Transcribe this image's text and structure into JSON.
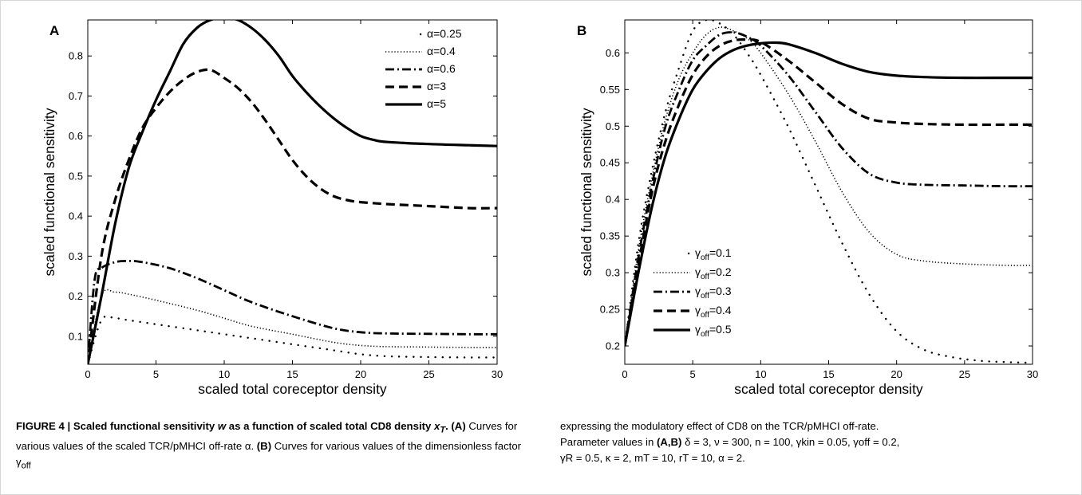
{
  "chart_data": [
    {
      "panel_label": "A",
      "type": "line",
      "xlabel": "scaled total coreceptor density",
      "ylabel": "scaled functional sensitivity",
      "xlim": [
        0,
        30
      ],
      "ylim": [
        0.03,
        0.89
      ],
      "xticks": [
        0,
        5,
        10,
        15,
        20,
        25,
        30
      ],
      "yticks": [
        0.1,
        0.2,
        0.3,
        0.4,
        0.5,
        0.6,
        0.7,
        0.8
      ],
      "legend_position": "top-right",
      "series": [
        {
          "name": "α=0.25",
          "style": "dotted-sparse",
          "x": [
            0,
            1,
            2,
            3,
            5,
            8,
            10,
            12,
            15,
            18,
            20,
            22,
            25,
            28,
            30
          ],
          "y": [
            0.03,
            0.14,
            0.145,
            0.14,
            0.13,
            0.115,
            0.105,
            0.095,
            0.08,
            0.065,
            0.055,
            0.05,
            0.048,
            0.047,
            0.047
          ]
        },
        {
          "name": "α=0.4",
          "style": "dotted",
          "x": [
            0,
            1,
            2,
            3,
            5,
            8,
            10,
            12,
            15,
            18,
            20,
            22,
            25,
            28,
            30
          ],
          "y": [
            0.03,
            0.2,
            0.21,
            0.205,
            0.19,
            0.165,
            0.145,
            0.125,
            0.105,
            0.085,
            0.077,
            0.074,
            0.073,
            0.072,
            0.072
          ]
        },
        {
          "name": "α=0.6",
          "style": "dashdot",
          "x": [
            0,
            0.5,
            1,
            2,
            3,
            4,
            6,
            8,
            10,
            12,
            15,
            18,
            20,
            22,
            25,
            28,
            30
          ],
          "y": [
            0.03,
            0.24,
            0.27,
            0.285,
            0.288,
            0.285,
            0.27,
            0.245,
            0.215,
            0.185,
            0.15,
            0.12,
            0.11,
            0.107,
            0.106,
            0.105,
            0.105
          ]
        },
        {
          "name": "α=3",
          "style": "dashed",
          "x": [
            0,
            1,
            2,
            3,
            4,
            5,
            6,
            7,
            8,
            9,
            10,
            11,
            12,
            13,
            14,
            15,
            16,
            17,
            18,
            19,
            20,
            22,
            25,
            28,
            30
          ],
          "y": [
            0.03,
            0.3,
            0.44,
            0.54,
            0.62,
            0.67,
            0.71,
            0.74,
            0.76,
            0.765,
            0.745,
            0.72,
            0.685,
            0.64,
            0.59,
            0.54,
            0.5,
            0.47,
            0.45,
            0.44,
            0.435,
            0.43,
            0.425,
            0.42,
            0.42
          ]
        },
        {
          "name": "α=5",
          "style": "solid",
          "x": [
            0,
            1,
            2,
            3,
            4,
            5,
            6,
            7,
            8,
            9,
            10,
            11,
            12,
            13,
            14,
            15,
            16,
            17,
            18,
            19,
            20,
            21,
            22,
            25,
            28,
            30
          ],
          "y": [
            0.03,
            0.2,
            0.38,
            0.52,
            0.61,
            0.69,
            0.76,
            0.83,
            0.87,
            0.89,
            0.895,
            0.89,
            0.87,
            0.84,
            0.8,
            0.75,
            0.71,
            0.675,
            0.645,
            0.62,
            0.6,
            0.59,
            0.585,
            0.58,
            0.577,
            0.575
          ]
        }
      ]
    },
    {
      "panel_label": "B",
      "type": "line",
      "xlabel": "scaled total coreceptor density",
      "ylabel": "scaled functional sensitivity",
      "xlim": [
        0,
        30
      ],
      "ylim": [
        0.175,
        0.645
      ],
      "xticks": [
        0,
        5,
        10,
        15,
        20,
        25,
        30
      ],
      "yticks": [
        0.2,
        0.25,
        0.3,
        0.35,
        0.4,
        0.45,
        0.5,
        0.55,
        0.6
      ],
      "legend_position": "bottom-left",
      "series": [
        {
          "name_prefix": "γ",
          "name_sub": "off",
          "name_suffix": "=0.1",
          "style": "dotted-sparse",
          "x": [
            0,
            1,
            2,
            3,
            4,
            5,
            6,
            7,
            8,
            9,
            10,
            12,
            14,
            16,
            18,
            20,
            22,
            24,
            26,
            28,
            30
          ],
          "y": [
            0.2,
            0.34,
            0.44,
            0.52,
            0.58,
            0.63,
            0.645,
            0.64,
            0.625,
            0.6,
            0.57,
            0.5,
            0.42,
            0.34,
            0.27,
            0.22,
            0.195,
            0.185,
            0.18,
            0.178,
            0.177
          ]
        },
        {
          "name_prefix": "γ",
          "name_sub": "off",
          "name_suffix": "=0.2",
          "style": "dotted",
          "x": [
            0,
            1,
            2,
            3,
            4,
            5,
            6,
            7,
            8,
            9,
            10,
            12,
            14,
            16,
            18,
            20,
            22,
            25,
            28,
            30
          ],
          "y": [
            0.2,
            0.33,
            0.43,
            0.51,
            0.565,
            0.6,
            0.625,
            0.635,
            0.63,
            0.62,
            0.6,
            0.545,
            0.48,
            0.41,
            0.355,
            0.325,
            0.316,
            0.312,
            0.31,
            0.31
          ]
        },
        {
          "name_prefix": "γ",
          "name_sub": "off",
          "name_suffix": "=0.3",
          "style": "dashdot",
          "x": [
            0,
            1,
            2,
            3,
            4,
            5,
            6,
            7,
            8,
            9,
            10,
            12,
            14,
            16,
            18,
            20,
            22,
            25,
            28,
            30
          ],
          "y": [
            0.2,
            0.32,
            0.42,
            0.5,
            0.55,
            0.59,
            0.61,
            0.625,
            0.628,
            0.622,
            0.61,
            0.57,
            0.52,
            0.47,
            0.435,
            0.423,
            0.42,
            0.419,
            0.418,
            0.418
          ]
        },
        {
          "name_prefix": "γ",
          "name_sub": "off",
          "name_suffix": "=0.4",
          "style": "dashed",
          "x": [
            0,
            1,
            2,
            3,
            4,
            5,
            6,
            7,
            8,
            9,
            10,
            12,
            14,
            16,
            18,
            20,
            22,
            25,
            28,
            30
          ],
          "y": [
            0.2,
            0.31,
            0.41,
            0.48,
            0.53,
            0.57,
            0.595,
            0.61,
            0.617,
            0.618,
            0.615,
            0.59,
            0.56,
            0.53,
            0.51,
            0.505,
            0.503,
            0.502,
            0.502,
            0.502
          ]
        },
        {
          "name_prefix": "γ",
          "name_sub": "off",
          "name_suffix": "=0.5",
          "style": "solid",
          "x": [
            0,
            1,
            2,
            3,
            4,
            5,
            6,
            7,
            8,
            9,
            10,
            11,
            12,
            14,
            16,
            18,
            20,
            22,
            25,
            28,
            30
          ],
          "y": [
            0.2,
            0.3,
            0.39,
            0.46,
            0.51,
            0.55,
            0.575,
            0.593,
            0.604,
            0.61,
            0.613,
            0.614,
            0.612,
            0.6,
            0.585,
            0.574,
            0.569,
            0.567,
            0.566,
            0.566,
            0.566
          ]
        }
      ]
    }
  ],
  "caption_left": {
    "fig_label": "FIGURE 4 | Scaled functional sensitivity ",
    "w": "w",
    "mid": " as a function of scaled total CD8 density ",
    "x": "x",
    "x_sub": "T",
    "dot": ". ",
    "a_label": "(A)",
    "a_text": " Curves for various values of the scaled TCR/pMHCI off-rate α. ",
    "b_label": "(B)",
    "b_text": " Curves for various values of the dimensionless factor γ",
    "b_sub": "off"
  },
  "caption_right": {
    "line1": "expressing the modulatory effect of CD8 on the TCR/pMHCI off-rate.",
    "line2_pre": "Parameter values in ",
    "line2_bold": "(A,B)",
    "line2_post": " δ = 3, ν = 300, n = 100, γkin = 0.05, γoff = 0.2,",
    "line3": "γR = 0.5, κ = 2, mT = 10, rT = 10, α = 2."
  }
}
